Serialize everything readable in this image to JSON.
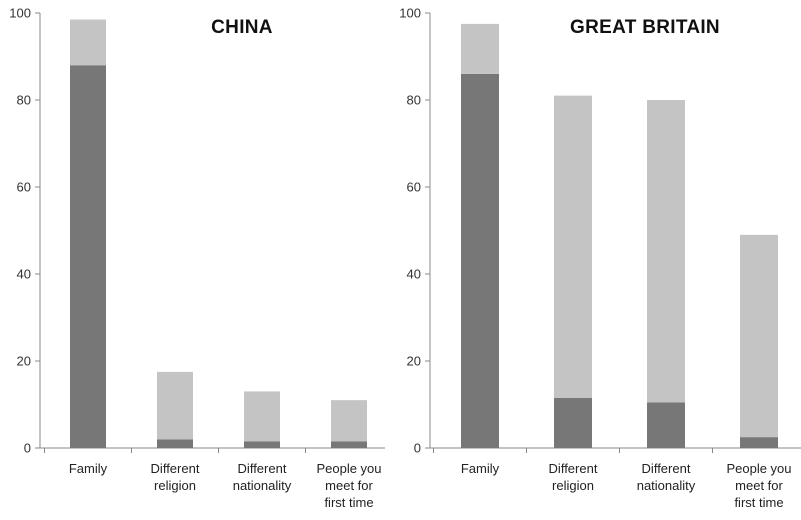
{
  "chart_data": [
    {
      "type": "bar",
      "stacked": true,
      "title": "CHINA",
      "categories": [
        [
          "Family"
        ],
        [
          "Different",
          "religion"
        ],
        [
          "Different",
          "nationality"
        ],
        [
          "People you",
          "meet for",
          "first time"
        ]
      ],
      "series": [
        {
          "values": [
            88,
            2,
            1.5,
            1.5
          ],
          "color": "#777777"
        },
        {
          "values": [
            10.5,
            15.5,
            11.5,
            9.5
          ],
          "color": "#c4c4c4"
        }
      ],
      "ylim": [
        0,
        100
      ],
      "yticks": [
        "0",
        "20",
        "40",
        "60",
        "80",
        "100"
      ],
      "xlabel": "",
      "ylabel": "",
      "grid": false
    },
    {
      "type": "bar",
      "stacked": true,
      "title": "GREAT BRITAIN",
      "categories": [
        [
          "Family"
        ],
        [
          "Different",
          "religion"
        ],
        [
          "Different",
          "nationality"
        ],
        [
          "People you",
          "meet for",
          "first time"
        ]
      ],
      "series": [
        {
          "values": [
            86,
            11.5,
            10.5,
            2.5
          ],
          "color": "#777777"
        },
        {
          "values": [
            11.5,
            69.5,
            69.5,
            46.5
          ],
          "color": "#c4c4c4"
        }
      ],
      "ylim": [
        0,
        100
      ],
      "yticks": [
        "0",
        "20",
        "40",
        "60",
        "80",
        "100"
      ],
      "xlabel": "",
      "ylabel": "",
      "grid": false
    }
  ]
}
